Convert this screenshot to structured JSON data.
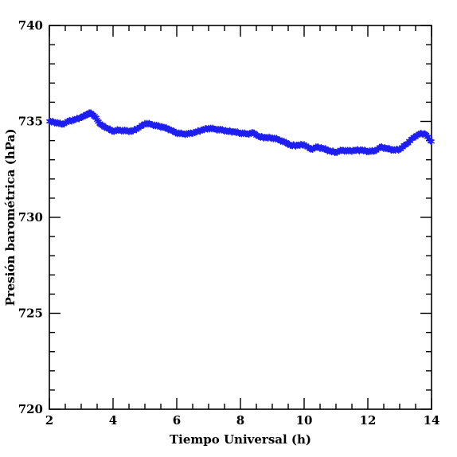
{
  "chart_data": {
    "type": "scatter",
    "xlabel": "Tiempo Universal (h)",
    "ylabel": "Presión barométrica (hPa)",
    "xlim": [
      2,
      14
    ],
    "ylim": [
      720,
      740
    ],
    "x_ticks": [
      2,
      4,
      6,
      8,
      10,
      12,
      14
    ],
    "y_ticks": [
      720,
      725,
      730,
      735,
      740
    ],
    "x_tick_labels": [
      "2",
      "4",
      "6",
      "8",
      "10",
      "12",
      "14"
    ],
    "y_tick_labels": [
      "720",
      "725",
      "730",
      "735",
      "740"
    ],
    "x_minor_step": 0.5,
    "y_minor_step": 1,
    "marker": "asterisk",
    "color": "#1e1ef0",
    "grid": false,
    "series": [
      {
        "x": [
          2.0,
          2.2,
          2.4,
          2.6,
          2.8,
          3.0,
          3.15,
          3.3,
          3.45,
          3.6,
          3.8,
          4.0,
          4.2,
          4.4,
          4.6,
          4.8,
          5.0,
          5.2,
          5.4,
          5.6,
          5.8,
          6.0,
          6.2,
          6.4,
          6.6,
          6.8,
          7.0,
          7.2,
          7.4,
          7.6,
          7.8,
          8.0,
          8.2,
          8.4,
          8.6,
          8.8,
          9.0,
          9.2,
          9.4,
          9.6,
          9.8,
          10.0,
          10.2,
          10.4,
          10.6,
          10.8,
          11.0,
          11.2,
          11.4,
          11.6,
          11.8,
          12.0,
          12.2,
          12.4,
          12.6,
          12.8,
          13.0,
          13.2,
          13.4,
          13.6,
          13.8,
          14.0
        ],
        "y": [
          735.0,
          734.95,
          734.85,
          735.0,
          735.1,
          735.2,
          735.35,
          735.45,
          735.2,
          734.85,
          734.65,
          734.5,
          734.55,
          734.5,
          734.5,
          734.65,
          734.9,
          734.85,
          734.75,
          734.7,
          734.55,
          734.4,
          734.35,
          734.35,
          734.45,
          734.55,
          734.65,
          734.6,
          734.55,
          734.5,
          734.45,
          734.4,
          734.35,
          734.4,
          734.2,
          734.15,
          734.15,
          734.05,
          733.9,
          733.75,
          733.75,
          733.8,
          733.55,
          733.65,
          733.6,
          733.45,
          733.4,
          733.5,
          733.45,
          733.5,
          733.5,
          733.45,
          733.45,
          733.65,
          733.6,
          733.5,
          733.55,
          733.8,
          734.1,
          734.35,
          734.35,
          733.95
        ]
      }
    ]
  }
}
